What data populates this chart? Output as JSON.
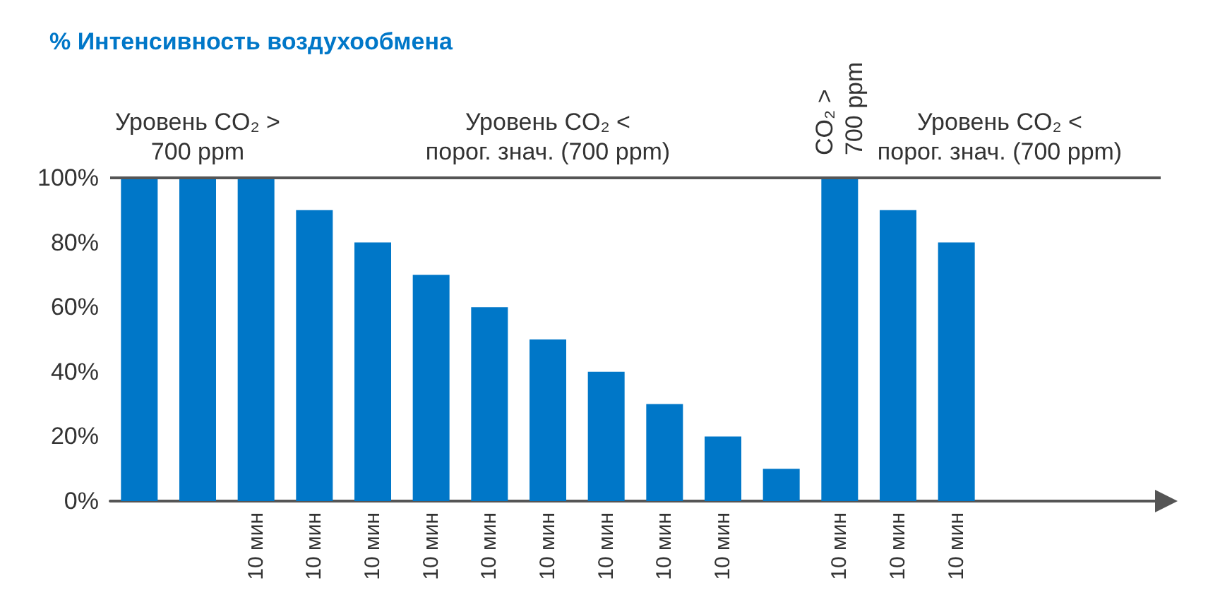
{
  "chart_data": {
    "type": "bar",
    "ylabel": "% Интенсивность воздухообмена",
    "categories": [
      null,
      null,
      "10 мин",
      "10 мин",
      "10 мин",
      "10 мин",
      "10 мин",
      "10 мин",
      "10 мин",
      "10 мин",
      "10 мин",
      null,
      "10 мин",
      "10 мин",
      "10 мин"
    ],
    "values": [
      100,
      100,
      100,
      90,
      80,
      70,
      60,
      50,
      40,
      30,
      20,
      10,
      100,
      90,
      80
    ],
    "color": "#0077c8",
    "ylim": [
      0,
      100
    ],
    "yticks": [
      {
        "value": 0,
        "label": "0%"
      },
      {
        "value": 20,
        "label": "20%"
      },
      {
        "value": 40,
        "label": "40%"
      },
      {
        "value": 60,
        "label": "60%"
      },
      {
        "value": 80,
        "label": "80%"
      },
      {
        "value": 100,
        "label": "100%"
      }
    ],
    "ref_lines": [
      {
        "axis": "y",
        "value": 100,
        "color": "#555555"
      }
    ],
    "annotations": [
      "Уровень CO₂ >\n700 ppm",
      "Уровень CO₂ <\nпорог. знач. (700 ppm)",
      "CO₂ >\n700 ppm",
      "Уровень CO₂ <\nпорог. знач. (700 ppm)"
    ],
    "grid": false
  }
}
